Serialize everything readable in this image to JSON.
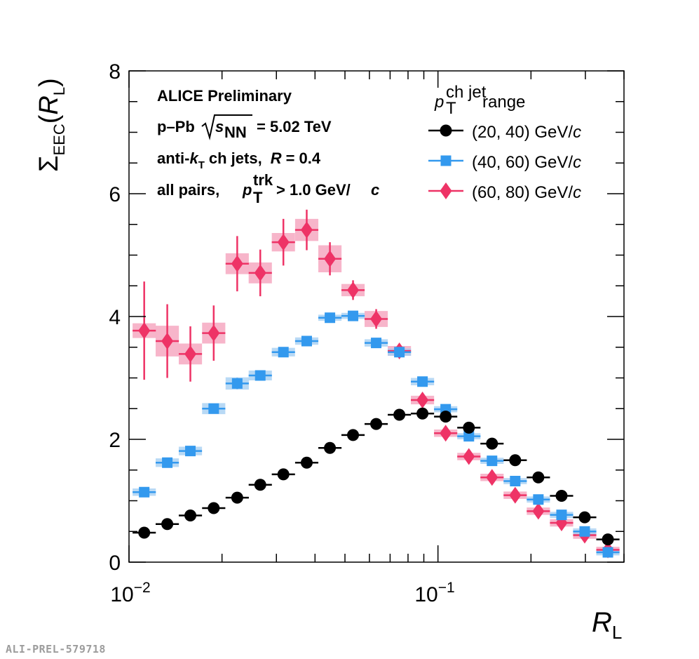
{
  "chart_data": {
    "type": "scatter",
    "xscale": "log",
    "xlim": [
      0.01,
      0.4
    ],
    "ylim": [
      0,
      8
    ],
    "ylabel": {
      "symbol": "Σ",
      "sub": "EEC",
      "arg": "R",
      "arg_sub": "L"
    },
    "xlabel": {
      "symbol": "R",
      "sub": "L"
    },
    "y_ticks": [
      "0",
      "2",
      "4",
      "6",
      "8"
    ],
    "x_ticks": [
      {
        "base": "10",
        "exp": "−2"
      },
      {
        "base": "10",
        "exp": "−1"
      }
    ],
    "annotations": {
      "line1": "ALICE Preliminary",
      "line2": {
        "pre": "p–Pb",
        "s": "s",
        "s_sub": "NN",
        "post": "= 5.02 TeV"
      },
      "line3": {
        "pre": "anti-",
        "k": "k",
        "k_sub": "T",
        "mid": "ch jets,",
        "R": "R",
        "post": "= 0.4"
      },
      "line4": {
        "pre": "all pairs,",
        "p": "p",
        "p_sub": "T",
        "p_sup": "trk",
        "post": "> 1.0 GeV/",
        "c": "c"
      }
    },
    "legend": {
      "title": {
        "p": "p",
        "sub": "T",
        "sup": "ch jet",
        "text": "range"
      },
      "entries": [
        {
          "text": "(20, 40) GeV/",
          "c": "c"
        },
        {
          "text": "(40, 60) GeV/",
          "c": "c"
        },
        {
          "text": "(60, 80) GeV/",
          "c": "c"
        }
      ]
    },
    "series": [
      {
        "name": "(20, 40) GeV/c",
        "color": "#000000",
        "marker": "circle",
        "x": [
          0.0112,
          0.0133,
          0.0158,
          0.0188,
          0.0224,
          0.0266,
          0.0316,
          0.0376,
          0.0447,
          0.0531,
          0.0631,
          0.075,
          0.0891,
          0.1059,
          0.1259,
          0.1496,
          0.1778,
          0.2113,
          0.2512,
          0.2985,
          0.3548
        ],
        "y": [
          0.48,
          0.62,
          0.76,
          0.88,
          1.05,
          1.26,
          1.43,
          1.62,
          1.86,
          2.07,
          2.25,
          2.4,
          2.42,
          2.37,
          2.19,
          1.93,
          1.66,
          1.38,
          1.08,
          0.73,
          0.37
        ],
        "yerr": [
          0.02,
          0.02,
          0.02,
          0.02,
          0.02,
          0.02,
          0.02,
          0.02,
          0.02,
          0.02,
          0.02,
          0.02,
          0.02,
          0.02,
          0.02,
          0.02,
          0.02,
          0.02,
          0.02,
          0.02,
          0.02
        ],
        "sys": [
          0.02,
          0.02,
          0.02,
          0.02,
          0.02,
          0.02,
          0.02,
          0.02,
          0.02,
          0.02,
          0.02,
          0.02,
          0.02,
          0.02,
          0.02,
          0.02,
          0.02,
          0.02,
          0.02,
          0.02,
          0.02
        ]
      },
      {
        "name": "(40, 60) GeV/c",
        "color": "#3399ee",
        "box_color": "#a6cff3",
        "marker": "square",
        "x": [
          0.0112,
          0.0133,
          0.0158,
          0.0188,
          0.0224,
          0.0266,
          0.0316,
          0.0376,
          0.0447,
          0.0531,
          0.0631,
          0.075,
          0.0891,
          0.1059,
          0.1259,
          0.1496,
          0.1778,
          0.2113,
          0.2512,
          0.2985,
          0.3548
        ],
        "y": [
          1.14,
          1.62,
          1.81,
          2.5,
          2.91,
          3.04,
          3.42,
          3.6,
          3.98,
          4.01,
          3.57,
          3.42,
          2.94,
          2.49,
          2.05,
          1.65,
          1.32,
          1.02,
          0.77,
          0.5,
          0.16
        ],
        "yerr": [
          0.05,
          0.07,
          0.07,
          0.08,
          0.09,
          0.07,
          0.06,
          0.05,
          0.04,
          0.04,
          0.04,
          0.04,
          0.04,
          0.04,
          0.04,
          0.04,
          0.04,
          0.04,
          0.04,
          0.04,
          0.04
        ],
        "sys": [
          0.06,
          0.07,
          0.07,
          0.09,
          0.1,
          0.08,
          0.07,
          0.06,
          0.05,
          0.05,
          0.06,
          0.06,
          0.06,
          0.05,
          0.05,
          0.04,
          0.04,
          0.04,
          0.04,
          0.04,
          0.04
        ]
      },
      {
        "name": "(60, 80) GeV/c",
        "color": "#ee3366",
        "box_color": "#f5a3bd",
        "marker": "diamond",
        "x": [
          0.0112,
          0.0133,
          0.0158,
          0.0188,
          0.0224,
          0.0266,
          0.0316,
          0.0376,
          0.0447,
          0.0531,
          0.0631,
          0.075,
          0.0891,
          0.1059,
          0.1259,
          0.1496,
          0.1778,
          0.2113,
          0.2512,
          0.2985,
          0.3548
        ],
        "y": [
          3.77,
          3.6,
          3.39,
          3.73,
          4.86,
          4.71,
          5.21,
          5.41,
          4.94,
          4.43,
          3.96,
          3.44,
          2.64,
          2.1,
          1.72,
          1.38,
          1.09,
          0.83,
          0.64,
          0.44,
          0.2
        ],
        "yerr": [
          0.8,
          0.6,
          0.45,
          0.45,
          0.45,
          0.38,
          0.38,
          0.33,
          0.27,
          0.16,
          0.16,
          0.1,
          0.08,
          0.07,
          0.07,
          0.07,
          0.07,
          0.07,
          0.07,
          0.07,
          0.07
        ],
        "sys": [
          0.12,
          0.25,
          0.17,
          0.17,
          0.17,
          0.17,
          0.15,
          0.18,
          0.22,
          0.1,
          0.13,
          0.08,
          0.07,
          0.06,
          0.06,
          0.06,
          0.06,
          0.06,
          0.06,
          0.06,
          0.05
        ]
      }
    ]
  },
  "preliminary_id": "ALI-PREL-579718"
}
